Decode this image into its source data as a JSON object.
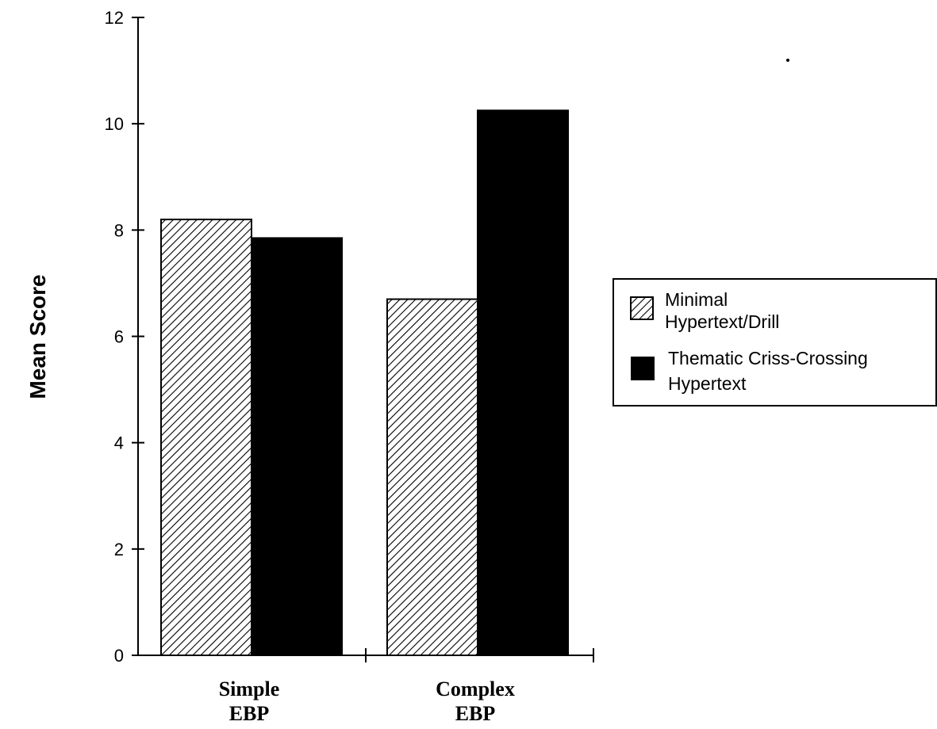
{
  "chart_data": {
    "type": "bar",
    "ylabel": "Mean Score",
    "xlabel": "",
    "ylim": [
      0,
      12
    ],
    "yticks": [
      "0",
      "2",
      "4",
      "6",
      "8",
      "10",
      "12"
    ],
    "categories": [
      {
        "line1": "Simple",
        "line2": "EBP"
      },
      {
        "line1": "Complex",
        "line2": "EBP"
      }
    ],
    "series": [
      {
        "name": "Minimal Hypertext/Drill",
        "name_line1": "Minimal",
        "name_line2": "Hypertext/Drill",
        "pattern": "hatched",
        "values": [
          8.2,
          6.7
        ]
      },
      {
        "name": "Thematic Criss-Crossing Hypertext",
        "name_line1": "Thematic Criss-Crossing",
        "name_line2": "Hypertext",
        "pattern": "solid",
        "values": [
          7.85,
          10.25
        ]
      }
    ],
    "grid": false,
    "legend_position": "right"
  }
}
